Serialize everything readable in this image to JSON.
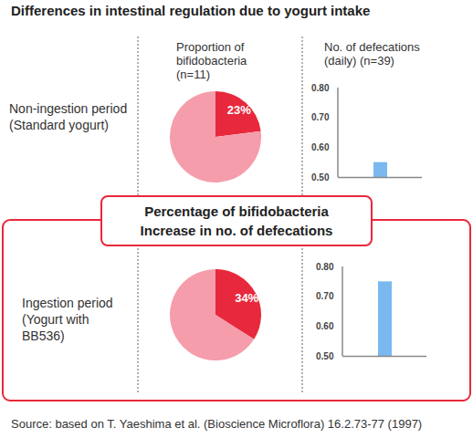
{
  "title": "Differences in intestinal regulation due to yogurt intake",
  "source": "Source: based on T. Yaeshima et al. (Bioscience Microflora) 16.2.73-77 (1997)",
  "highlight": "Percentage of bifidobacteria\nIncrease in no. of defecations",
  "columns": [
    "Proportion of\nbifidobacteria\n(n=11)",
    "No. of defecations\n(daily) (n=39)"
  ],
  "rows": [
    "Non-ingestion period\n(Standard yogurt)",
    "Ingestion period\n(Yogurt with\nBB536)"
  ],
  "chart_data": [
    {
      "type": "pie",
      "values": [
        23,
        77
      ],
      "value_labels": [
        "23%",
        null
      ],
      "data_labels": true,
      "colors": [
        "#e8283c",
        "#f59dab"
      ]
    },
    {
      "type": "bar",
      "categories": [
        null
      ],
      "values": [
        0.55
      ],
      "color": "#7ab8f0",
      "ylim": [
        0.5,
        0.8
      ],
      "yticks": [
        0.5,
        0.6,
        0.7,
        0.8
      ],
      "grid": false
    },
    {
      "type": "pie",
      "values": [
        34,
        66
      ],
      "value_labels": [
        "34%",
        null
      ],
      "data_labels": true,
      "colors": [
        "#e8283c",
        "#f59dab"
      ]
    },
    {
      "type": "bar",
      "categories": [
        null
      ],
      "values": [
        0.75
      ],
      "color": "#7ab8f0",
      "ylim": [
        0.5,
        0.8
      ],
      "yticks": [
        0.5,
        0.6,
        0.7,
        0.8
      ],
      "grid": false
    }
  ]
}
